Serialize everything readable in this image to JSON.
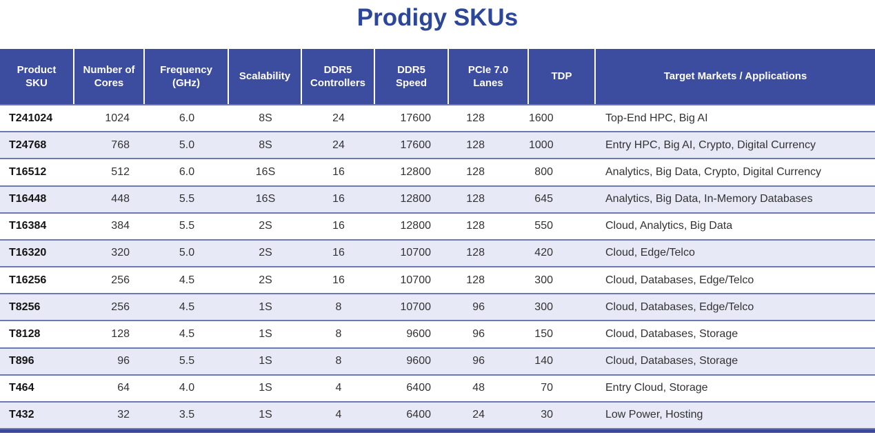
{
  "title": "Prodigy SKUs",
  "colors": {
    "title_text": "#2c4699",
    "header_bg": "#3c4c9e",
    "header_text": "#ffffff",
    "row_alt_bg": "#e7eaf6",
    "row_separator": "#6b78b4",
    "bottom_bar": "#3a4a9a"
  },
  "table": {
    "columns": [
      "Product SKU",
      "Number of Cores",
      "Frequency (GHz)",
      "Scalability",
      "DDR5 Controllers",
      "DDR5 Speed",
      "PCIe 7.0 Lanes",
      "TDP",
      "Target Markets / Applications"
    ],
    "rows": [
      {
        "sku": "T241024",
        "cores": "1024",
        "freq": "6.0",
        "scal": "8S",
        "ctrl": "24",
        "speed": "17600",
        "lanes": "128",
        "tdp": "1600",
        "markets": "Top-End HPC, Big AI"
      },
      {
        "sku": "T24768",
        "cores": "768",
        "freq": "5.0",
        "scal": "8S",
        "ctrl": "24",
        "speed": "17600",
        "lanes": "128",
        "tdp": "1000",
        "markets": "Entry HPC, Big AI, Crypto, Digital Currency"
      },
      {
        "sku": "T16512",
        "cores": "512",
        "freq": "6.0",
        "scal": "16S",
        "ctrl": "16",
        "speed": "12800",
        "lanes": "128",
        "tdp": "800",
        "markets": "Analytics, Big Data, Crypto, Digital Currency"
      },
      {
        "sku": "T16448",
        "cores": "448",
        "freq": "5.5",
        "scal": "16S",
        "ctrl": "16",
        "speed": "12800",
        "lanes": "128",
        "tdp": "645",
        "markets": "Analytics, Big Data, In-Memory Databases"
      },
      {
        "sku": "T16384",
        "cores": "384",
        "freq": "5.5",
        "scal": "2S",
        "ctrl": "16",
        "speed": "12800",
        "lanes": "128",
        "tdp": "550",
        "markets": "Cloud, Analytics, Big Data"
      },
      {
        "sku": "T16320",
        "cores": "320",
        "freq": "5.0",
        "scal": "2S",
        "ctrl": "16",
        "speed": "10700",
        "lanes": "128",
        "tdp": "420",
        "markets": "Cloud, Edge/Telco"
      },
      {
        "sku": "T16256",
        "cores": "256",
        "freq": "4.5",
        "scal": "2S",
        "ctrl": "16",
        "speed": "10700",
        "lanes": "128",
        "tdp": "300",
        "markets": "Cloud, Databases, Edge/Telco"
      },
      {
        "sku": "T8256",
        "cores": "256",
        "freq": "4.5",
        "scal": "1S",
        "ctrl": "8",
        "speed": "10700",
        "lanes": "96",
        "tdp": "300",
        "markets": "Cloud, Databases, Edge/Telco"
      },
      {
        "sku": "T8128",
        "cores": "128",
        "freq": "4.5",
        "scal": "1S",
        "ctrl": "8",
        "speed": "9600",
        "lanes": "96",
        "tdp": "150",
        "markets": "Cloud, Databases, Storage"
      },
      {
        "sku": "T896",
        "cores": "96",
        "freq": "5.5",
        "scal": "1S",
        "ctrl": "8",
        "speed": "9600",
        "lanes": "96",
        "tdp": "140",
        "markets": "Cloud, Databases, Storage"
      },
      {
        "sku": "T464",
        "cores": "64",
        "freq": "4.0",
        "scal": "1S",
        "ctrl": "4",
        "speed": "6400",
        "lanes": "48",
        "tdp": "70",
        "markets": "Entry Cloud, Storage"
      },
      {
        "sku": "T432",
        "cores": "32",
        "freq": "3.5",
        "scal": "1S",
        "ctrl": "4",
        "speed": "6400",
        "lanes": "24",
        "tdp": "30",
        "markets": "Low Power, Hosting"
      }
    ]
  },
  "chart_data": {
    "type": "table",
    "title": "Prodigy SKUs",
    "columns": [
      "Product SKU",
      "Number of Cores",
      "Frequency (GHz)",
      "Scalability",
      "DDR5 Controllers",
      "DDR5 Speed",
      "PCIe 7.0 Lanes",
      "TDP",
      "Target Markets / Applications"
    ],
    "rows": [
      [
        "T241024",
        1024,
        "6.0",
        "8S",
        24,
        17600,
        128,
        1600,
        "Top-End HPC, Big AI"
      ],
      [
        "T24768",
        768,
        "5.0",
        "8S",
        24,
        17600,
        128,
        1000,
        "Entry HPC, Big AI, Crypto, Digital Currency"
      ],
      [
        "T16512",
        512,
        "6.0",
        "16S",
        16,
        12800,
        128,
        800,
        "Analytics, Big Data, Crypto, Digital Currency"
      ],
      [
        "T16448",
        448,
        "5.5",
        "16S",
        16,
        12800,
        128,
        645,
        "Analytics, Big Data, In-Memory Databases"
      ],
      [
        "T16384",
        384,
        "5.5",
        "2S",
        16,
        12800,
        128,
        550,
        "Cloud, Analytics, Big Data"
      ],
      [
        "T16320",
        320,
        "5.0",
        "2S",
        16,
        10700,
        128,
        420,
        "Cloud, Edge/Telco"
      ],
      [
        "T16256",
        256,
        "4.5",
        "2S",
        16,
        10700,
        128,
        300,
        "Cloud, Databases, Edge/Telco"
      ],
      [
        "T8256",
        256,
        "4.5",
        "1S",
        8,
        10700,
        96,
        300,
        "Cloud, Databases, Edge/Telco"
      ],
      [
        "T8128",
        128,
        "4.5",
        "1S",
        8,
        9600,
        96,
        150,
        "Cloud, Databases, Storage"
      ],
      [
        "T896",
        96,
        "5.5",
        "1S",
        8,
        9600,
        96,
        140,
        "Cloud, Databases, Storage"
      ],
      [
        "T464",
        64,
        "4.0",
        "1S",
        4,
        6400,
        48,
        70,
        "Entry Cloud, Storage"
      ],
      [
        "T432",
        32,
        "3.5",
        "1S",
        4,
        6400,
        24,
        30,
        "Low Power, Hosting"
      ]
    ]
  }
}
